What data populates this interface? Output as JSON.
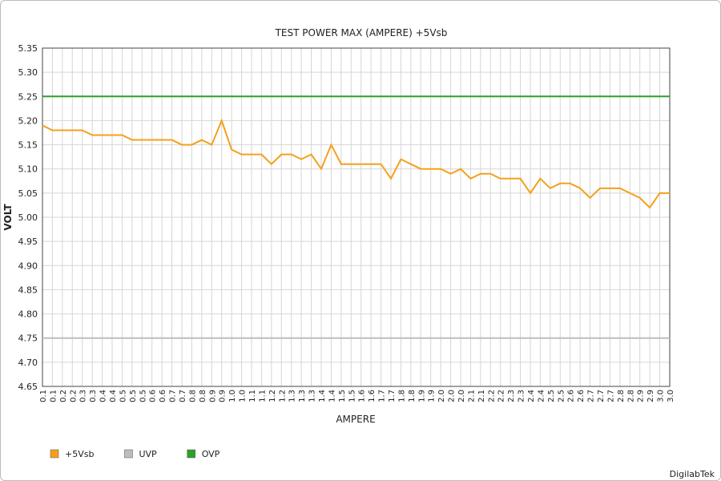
{
  "chart_data": {
    "type": "line",
    "title": "TEST POWER MAX (AMPERE) +5Vsb",
    "x_label": "AMPERE",
    "y_label": "VOLT",
    "footer": "DigilabTek",
    "categories": [
      "0.1",
      "0.1",
      "0.2",
      "0.2",
      "0.3",
      "0.3",
      "0.4",
      "0.4",
      "0.5",
      "0.5",
      "0.5",
      "0.6",
      "0.6",
      "0.7",
      "0.7",
      "0.8",
      "0.8",
      "0.9",
      "0.9",
      "1.0",
      "1.0",
      "1.1",
      "1.1",
      "1.2",
      "1.2",
      "1.3",
      "1.3",
      "1.3",
      "1.4",
      "1.4",
      "1.5",
      "1.5",
      "1.6",
      "1.6",
      "1.7",
      "1.7",
      "1.8",
      "1.8",
      "1.9",
      "1.9",
      "2.0",
      "2.0",
      "2.0",
      "2.1",
      "2.1",
      "2.2",
      "2.2",
      "2.3",
      "2.3",
      "2.4",
      "2.4",
      "2.5",
      "2.5",
      "2.6",
      "2.6",
      "2.7",
      "2.7",
      "2.7",
      "2.8",
      "2.8",
      "2.9",
      "2.9",
      "3.0",
      "3.0"
    ],
    "series": [
      {
        "name": "+5Vsb",
        "color": "#f5a01a",
        "values": [
          5.19,
          5.18,
          5.18,
          5.18,
          5.18,
          5.17,
          5.17,
          5.17,
          5.17,
          5.16,
          5.16,
          5.16,
          5.16,
          5.16,
          5.15,
          5.15,
          5.16,
          5.15,
          5.2,
          5.14,
          5.13,
          5.13,
          5.13,
          5.11,
          5.13,
          5.13,
          5.12,
          5.13,
          5.1,
          5.15,
          5.11,
          5.11,
          5.11,
          5.11,
          5.11,
          5.08,
          5.12,
          5.11,
          5.1,
          5.1,
          5.1,
          5.09,
          5.1,
          5.08,
          5.09,
          5.09,
          5.08,
          5.08,
          5.08,
          5.05,
          5.08,
          5.06,
          5.07,
          5.07,
          5.06,
          5.04,
          5.06,
          5.06,
          5.06,
          5.05,
          5.04,
          5.02,
          5.05,
          5.05
        ]
      },
      {
        "name": "UVP",
        "color": "#bdbdbd",
        "values": [
          4.75,
          4.75,
          4.75,
          4.75,
          4.75,
          4.75,
          4.75,
          4.75,
          4.75,
          4.75,
          4.75,
          4.75,
          4.75,
          4.75,
          4.75,
          4.75,
          4.75,
          4.75,
          4.75,
          4.75,
          4.75,
          4.75,
          4.75,
          4.75,
          4.75,
          4.75,
          4.75,
          4.75,
          4.75,
          4.75,
          4.75,
          4.75,
          4.75,
          4.75,
          4.75,
          4.75,
          4.75,
          4.75,
          4.75,
          4.75,
          4.75,
          4.75,
          4.75,
          4.75,
          4.75,
          4.75,
          4.75,
          4.75,
          4.75,
          4.75,
          4.75,
          4.75,
          4.75,
          4.75,
          4.75,
          4.75,
          4.75,
          4.75,
          4.75,
          4.75,
          4.75,
          4.75,
          4.75,
          4.75
        ]
      },
      {
        "name": "OVP",
        "color": "#2ca02c",
        "values": [
          5.25,
          5.25,
          5.25,
          5.25,
          5.25,
          5.25,
          5.25,
          5.25,
          5.25,
          5.25,
          5.25,
          5.25,
          5.25,
          5.25,
          5.25,
          5.25,
          5.25,
          5.25,
          5.25,
          5.25,
          5.25,
          5.25,
          5.25,
          5.25,
          5.25,
          5.25,
          5.25,
          5.25,
          5.25,
          5.25,
          5.25,
          5.25,
          5.25,
          5.25,
          5.25,
          5.25,
          5.25,
          5.25,
          5.25,
          5.25,
          5.25,
          5.25,
          5.25,
          5.25,
          5.25,
          5.25,
          5.25,
          5.25,
          5.25,
          5.25,
          5.25,
          5.25,
          5.25,
          5.25,
          5.25,
          5.25,
          5.25,
          5.25,
          5.25,
          5.25,
          5.25,
          5.25,
          5.25,
          5.25
        ]
      }
    ],
    "ylim": [
      4.65,
      5.35
    ],
    "yticks": [
      4.65,
      {
        "value": 4.7,
        "label": "4.70"
      },
      4.75,
      {
        "value": 4.8,
        "label": "4.80"
      },
      4.85,
      {
        "value": 4.9,
        "label": "4.90"
      },
      4.95,
      {
        "value": 5.0,
        "label": "5.00"
      },
      5.05,
      {
        "value": 5.1,
        "label": "5.10"
      },
      5.15,
      {
        "value": 5.2,
        "label": "5.20"
      },
      5.25,
      {
        "value": 5.3,
        "label": "5.30"
      },
      5.35
    ],
    "grid": true,
    "legend": "bottom-left"
  }
}
